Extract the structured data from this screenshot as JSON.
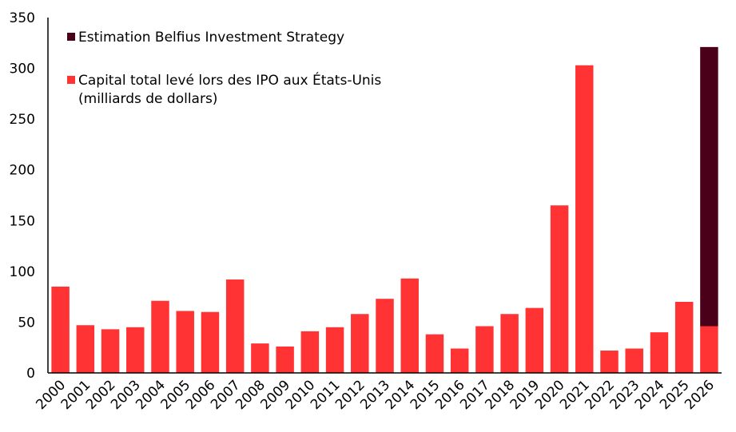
{
  "chart_data": {
    "type": "bar",
    "title": "",
    "xlabel": "",
    "ylabel": "",
    "ylim": [
      0,
      350
    ],
    "yticks": [
      0,
      50,
      100,
      150,
      200,
      250,
      300,
      350
    ],
    "grid": false,
    "legend_position": "top-left",
    "categories": [
      "2000",
      "2001",
      "2002",
      "2003",
      "2004",
      "2005",
      "2006",
      "2007",
      "2008",
      "2009",
      "2010",
      "2011",
      "2012",
      "2013",
      "2014",
      "2015",
      "2016",
      "2017",
      "2018",
      "2019",
      "2020",
      "2021",
      "2022",
      "2023",
      "2024",
      "2025",
      "2026"
    ],
    "series": [
      {
        "name": "Capital total levé lors des IPO aux États-Unis (milliards de dollars)",
        "legend_lines": [
          "Capital total levé lors des IPO aux États-Unis",
          "(milliards de dollars)"
        ],
        "color": "#ff3333",
        "values": [
          85,
          47,
          43,
          45,
          71,
          61,
          60,
          92,
          29,
          26,
          41,
          45,
          58,
          73,
          93,
          38,
          24,
          46,
          58,
          64,
          165,
          303,
          22,
          24,
          40,
          70,
          46
        ]
      },
      {
        "name": "Estimation Belfius Investment Strategy",
        "legend_lines": [
          "Estimation Belfius Investment Strategy"
        ],
        "color": "#4a0019",
        "values": [
          0,
          0,
          0,
          0,
          0,
          0,
          0,
          0,
          0,
          0,
          0,
          0,
          0,
          0,
          0,
          0,
          0,
          0,
          0,
          0,
          0,
          0,
          0,
          0,
          0,
          0,
          275
        ]
      }
    ]
  }
}
